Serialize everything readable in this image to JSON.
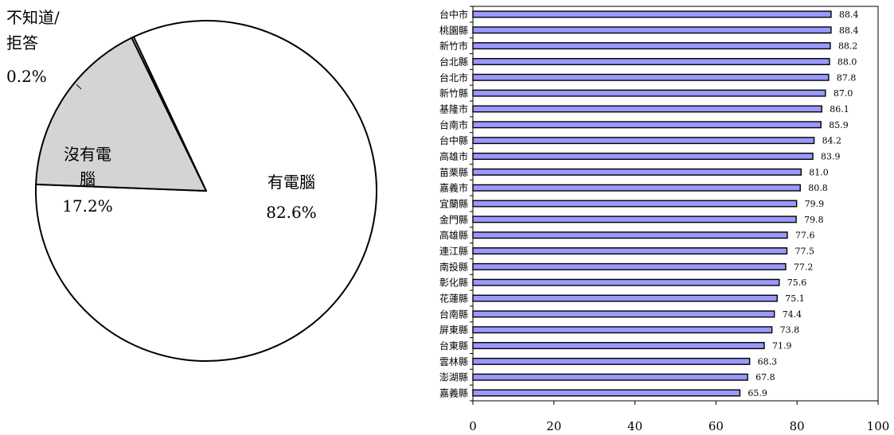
{
  "chart_data": [
    {
      "type": "pie",
      "title": "",
      "slices": [
        {
          "label_lines": [
            "有電腦",
            "82.6%"
          ],
          "value": 82.6,
          "color": "#ffffff"
        },
        {
          "label_lines": [
            "沒有電",
            "腦",
            "17.2%"
          ],
          "value": 17.2,
          "color": "#d4d4d4"
        },
        {
          "label_lines": [
            "不知道/",
            "拒答",
            "0.2%"
          ],
          "value": 0.2,
          "color": "#ffffff"
        }
      ]
    },
    {
      "type": "bar",
      "orientation": "horizontal",
      "title": "",
      "xlabel": "",
      "ylabel": "",
      "xlim": [
        0,
        100
      ],
      "x_ticks": [
        0,
        20,
        40,
        60,
        80,
        100
      ],
      "bar_color": "#9999ff",
      "categories": [
        "台中市",
        "桃園縣",
        "新竹市",
        "台北縣",
        "台北市",
        "新竹縣",
        "基隆市",
        "台南市",
        "台中縣",
        "高雄市",
        "苗栗縣",
        "嘉義市",
        "宜蘭縣",
        "金門縣",
        "高雄縣",
        "連江縣",
        "南投縣",
        "彰化縣",
        "花蓮縣",
        "台南縣",
        "屏東縣",
        "台東縣",
        "雲林縣",
        "澎湖縣",
        "嘉義縣"
      ],
      "values": [
        88.4,
        88.4,
        88.2,
        88.0,
        87.8,
        87.0,
        86.1,
        85.9,
        84.2,
        83.9,
        81.0,
        80.8,
        79.9,
        79.8,
        77.6,
        77.5,
        77.2,
        75.6,
        75.1,
        74.4,
        73.8,
        71.9,
        68.3,
        67.8,
        65.9
      ],
      "value_labels": [
        "88.4",
        "88.4",
        "88.2",
        "88.0",
        "87.8",
        "87.0",
        "86.1",
        "85.9",
        "84.2",
        "83.9",
        "81.0",
        "80.8",
        "79.9",
        "79.8",
        "77.6",
        "77.5",
        "77.2",
        "75.6",
        "75.1",
        "74.4",
        "73.8",
        "71.9",
        "68.3",
        "67.8",
        "65.9"
      ]
    }
  ]
}
